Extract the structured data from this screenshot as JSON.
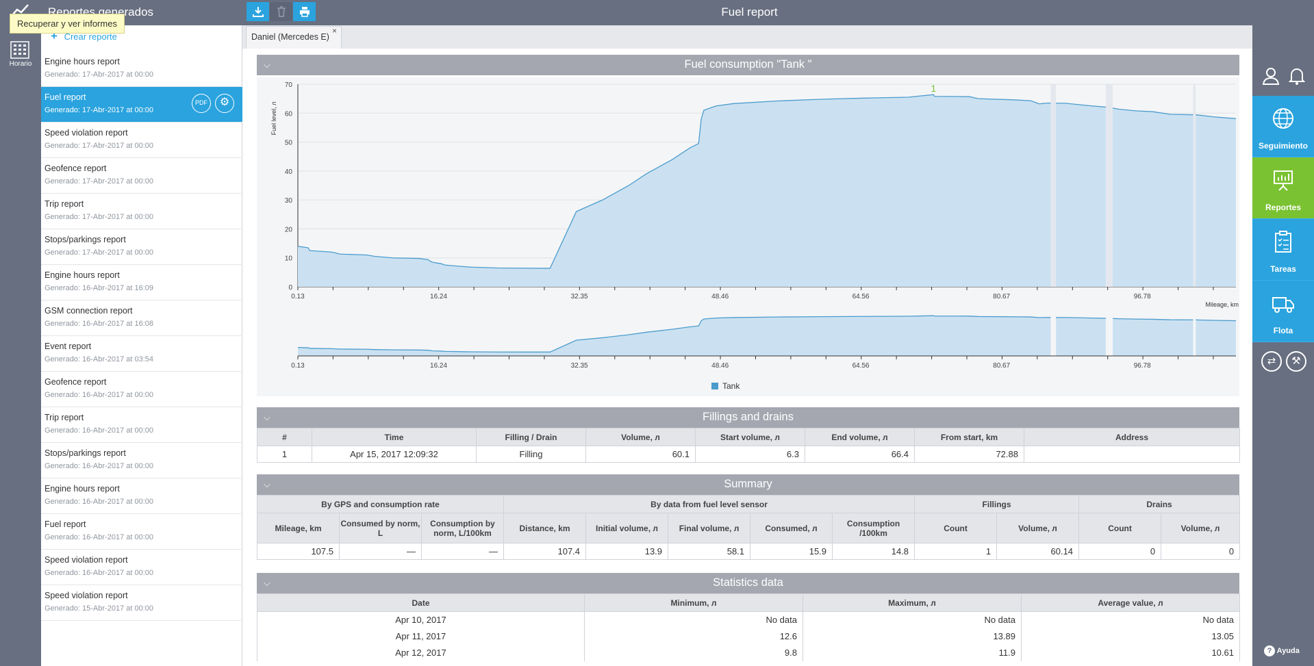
{
  "topbar": {
    "sidebar_title": "Reportes generados",
    "report_title": "Fuel report",
    "download_icon": "download-icon",
    "delete_icon": "trash-icon",
    "print_icon": "print-icon"
  },
  "leftrail": {
    "reports_icon": "chart-line-icon",
    "schedule_label": "Horario",
    "schedule_icon": "calendar-grid-icon"
  },
  "tooltip": "Recuperar y ver informes",
  "sidebar": {
    "create_label": "Crear reporte",
    "items": [
      {
        "name": "Engine hours report",
        "date": "Generado: 17-Abr-2017 at 00:00"
      },
      {
        "name": "Fuel report",
        "date": "Generado: 17-Abr-2017 at 00:00",
        "selected": true
      },
      {
        "name": "Speed violation report",
        "date": "Generado: 17-Abr-2017 at 00:00"
      },
      {
        "name": "Geofence report",
        "date": "Generado: 17-Abr-2017 at 00:00"
      },
      {
        "name": "Trip report",
        "date": "Generado: 17-Abr-2017 at 00:00"
      },
      {
        "name": "Stops/parkings report",
        "date": "Generado: 17-Abr-2017 at 00:00"
      },
      {
        "name": "Engine hours report",
        "date": "Generado: 16-Abr-2017 at 16:09"
      },
      {
        "name": "GSM connection report",
        "date": "Generado: 16-Abr-2017 at 16:08"
      },
      {
        "name": "Event report",
        "date": "Generado: 16-Abr-2017 at 03:54"
      },
      {
        "name": "Geofence report",
        "date": "Generado: 16-Abr-2017 at 00:00"
      },
      {
        "name": "Trip report",
        "date": "Generado: 16-Abr-2017 at 00:00"
      },
      {
        "name": "Stops/parkings report",
        "date": "Generado: 16-Abr-2017 at 00:00"
      },
      {
        "name": "Engine hours report",
        "date": "Generado: 16-Abr-2017 at 00:00"
      },
      {
        "name": "Fuel report",
        "date": "Generado: 16-Abr-2017 at 00:00"
      },
      {
        "name": "Speed violation report",
        "date": "Generado: 16-Abr-2017 at 00:00"
      },
      {
        "name": "Speed violation report",
        "date": "Generado: 15-Abr-2017 at 00:00"
      }
    ],
    "pdf_label": "PDF"
  },
  "tab": {
    "label": "Daniel (Mercedes E)",
    "close": "×"
  },
  "rightnav": {
    "items": [
      {
        "label": "Seguimiento",
        "icon": "globe-icon"
      },
      {
        "label": "Reportes",
        "icon": "presentation-chart-icon",
        "active": true
      },
      {
        "label": "Tareas",
        "icon": "clipboard-icon"
      },
      {
        "label": "Flota",
        "icon": "truck-icon"
      }
    ],
    "help_label": "Ayuda"
  },
  "sections": {
    "chart_title": "Fuel consumption \"Tank \"",
    "fillings_title": "Fillings and drains",
    "summary_title": "Summary",
    "stats_title": "Statistics data"
  },
  "chart_data": {
    "type": "area",
    "ylabel": "Fuel level, л",
    "xlabel": "Mileage, km",
    "ylim": [
      0,
      70
    ],
    "yticks": [
      0,
      10,
      20,
      30,
      40,
      50,
      60,
      70
    ],
    "xticks": [
      0.13,
      16.24,
      32.35,
      48.46,
      64.56,
      80.67,
      96.78
    ],
    "xlim": [
      0.13,
      107.5
    ],
    "legend": "bottom-center",
    "grid": true,
    "filling_marker": {
      "label": "1",
      "x": 72.88,
      "y": 66.4
    },
    "series": [
      {
        "name": "Tank",
        "color": "#4b9ccd",
        "points": [
          [
            0.13,
            14
          ],
          [
            1.3,
            13.5
          ],
          [
            1.5,
            12.5
          ],
          [
            4,
            12
          ],
          [
            5,
            11.3
          ],
          [
            8,
            11
          ],
          [
            9,
            10.5
          ],
          [
            11,
            10
          ],
          [
            14,
            9.8
          ],
          [
            15,
            9.4
          ],
          [
            15.5,
            8.5
          ],
          [
            16.5,
            8
          ],
          [
            17,
            7.5
          ],
          [
            19,
            7
          ],
          [
            20,
            6.8
          ],
          [
            23,
            6.5
          ],
          [
            28,
            6.4
          ],
          [
            29,
            6.4
          ],
          [
            32,
            26
          ],
          [
            35,
            30
          ],
          [
            38,
            35
          ],
          [
            40,
            39
          ],
          [
            43,
            44
          ],
          [
            45,
            48
          ],
          [
            46,
            49.5
          ],
          [
            46.3,
            58
          ],
          [
            46.6,
            61
          ],
          [
            48,
            62.5
          ],
          [
            50,
            63.3
          ],
          [
            55,
            64.2
          ],
          [
            60,
            64.8
          ],
          [
            65,
            65.2
          ],
          [
            70,
            65.5
          ],
          [
            72.88,
            66.4
          ],
          [
            73,
            65.8
          ],
          [
            77,
            65.7
          ],
          [
            78,
            65
          ],
          [
            82,
            64.6
          ],
          [
            84,
            64.3
          ],
          [
            85,
            63.2
          ],
          [
            86,
            63.5
          ],
          [
            88,
            63.4
          ],
          [
            91,
            62.5
          ],
          [
            93,
            62
          ],
          [
            94,
            61.4
          ],
          [
            96,
            60.8
          ],
          [
            98,
            60.5
          ],
          [
            100,
            59.6
          ],
          [
            103,
            59.4
          ],
          [
            105,
            58.7
          ],
          [
            107.5,
            58.1
          ]
        ]
      }
    ],
    "gaps_x": [
      [
        86.3,
        86.9
      ],
      [
        92.6,
        93.4
      ],
      [
        102.6,
        102.9
      ]
    ]
  },
  "fillings": {
    "headers": [
      "#",
      "Time",
      "Filling / Drain",
      "Volume, л",
      "Start volume, л",
      "End volume, л",
      "From start, km",
      "Address"
    ],
    "rows": [
      [
        "1",
        "Apr 15, 2017 12:09:32",
        "Filling",
        "60.1",
        "6.3",
        "66.4",
        "72.88",
        ""
      ]
    ]
  },
  "summary": {
    "groups": [
      "By GPS and consumption rate",
      "By data from fuel level sensor",
      "Fillings",
      "Drains"
    ],
    "headers": [
      "Mileage, km",
      "Consumed by norm, L",
      "Consumption by norm, L/100km",
      "Distance, km",
      "Initial volume, л",
      "Final volume, л",
      "Consumed, л",
      "Consumption /100km",
      "Count",
      "Volume, л",
      "Count",
      "Volume, л"
    ],
    "row": [
      "107.5",
      "—",
      "—",
      "107.4",
      "13.9",
      "58.1",
      "15.9",
      "14.8",
      "1",
      "60.14",
      "0",
      "0"
    ]
  },
  "stats": {
    "headers": [
      "Date",
      "Minimum, л",
      "Maximum, л",
      "Average value, л"
    ],
    "rows": [
      [
        "Apr 10, 2017",
        "No data",
        "No data",
        "No data"
      ],
      [
        "Apr 11, 2017",
        "12.6",
        "13.89",
        "13.05"
      ],
      [
        "Apr 12, 2017",
        "9.8",
        "11.9",
        "10.61"
      ]
    ]
  }
}
